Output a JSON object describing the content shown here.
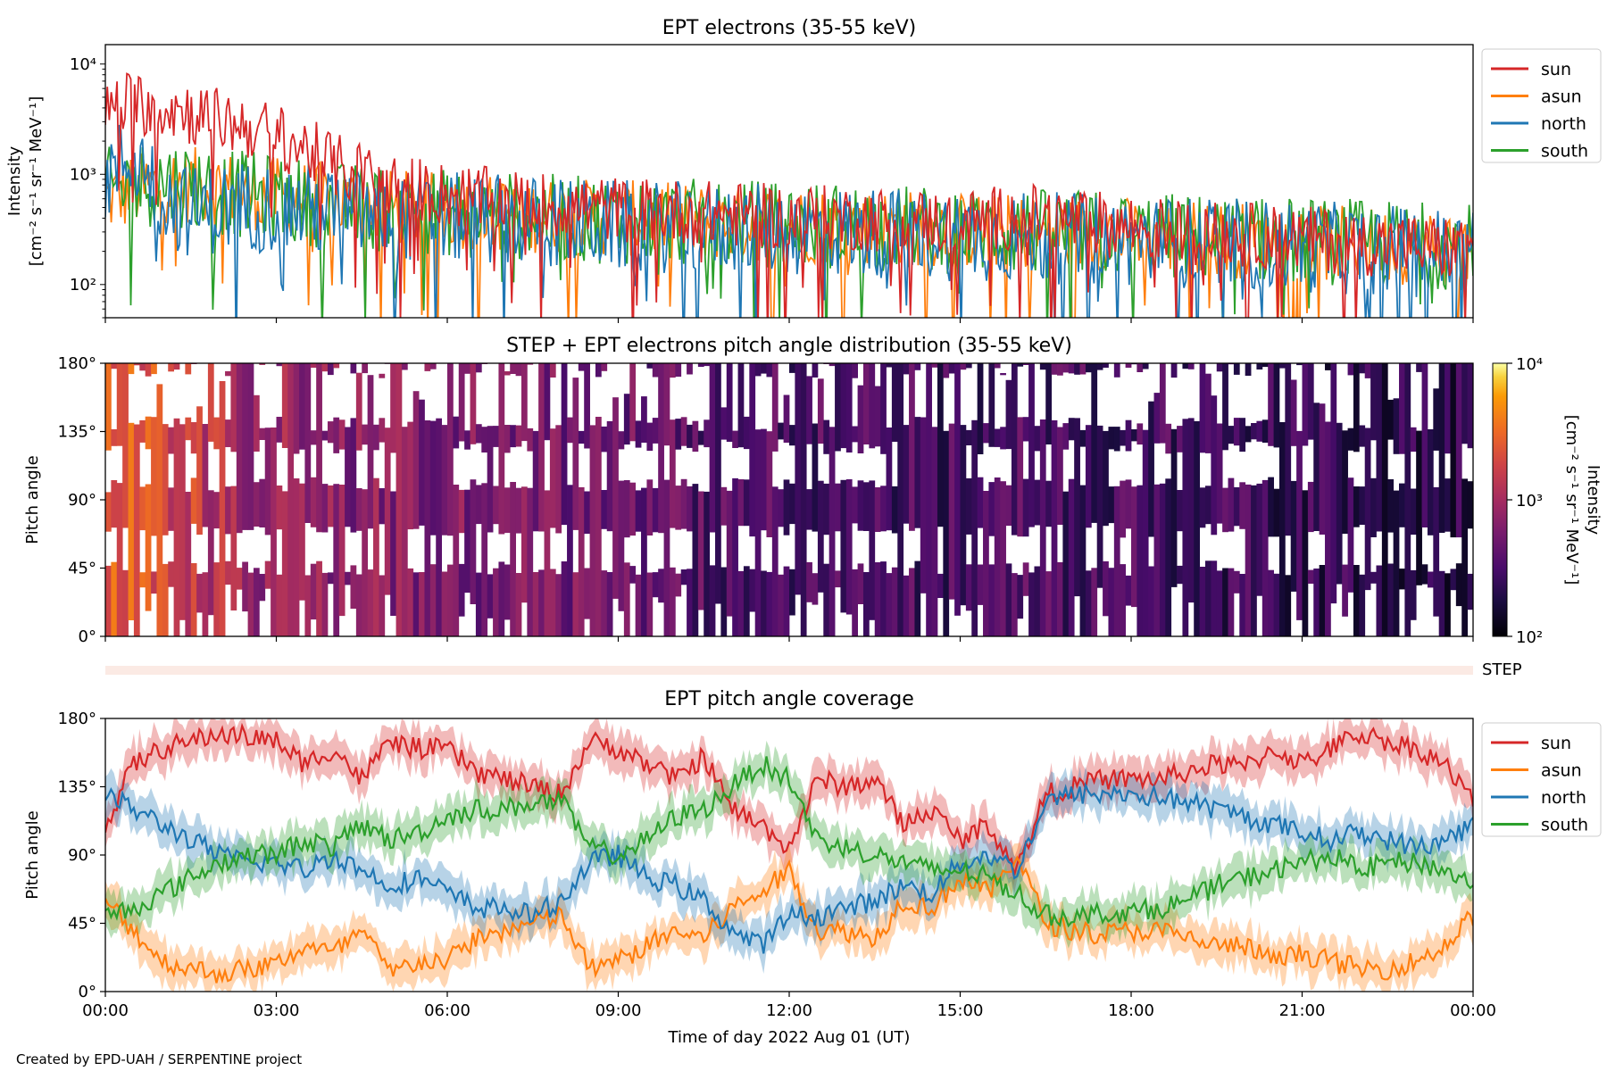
{
  "footer_credit": "Created by EPD-UAH / SERPENTINE project",
  "chart_data": [
    {
      "type": "line",
      "title": "EPT electrons (35-55 keV)",
      "ylabel_line1": "Intensity",
      "ylabel_line2": "[cm⁻² s⁻¹ sr⁻¹ MeV⁻¹]",
      "yscale": "log",
      "ylim": [
        50,
        15000
      ],
      "yticks": [
        {
          "value": 100,
          "label": "10²"
        },
        {
          "value": 1000,
          "label": "10³"
        },
        {
          "value": 10000,
          "label": "10⁴"
        }
      ],
      "xlim_hours": [
        0,
        24
      ],
      "legend_position": "outside right, top",
      "grid": false,
      "series": [
        {
          "name": "sun",
          "color": "#d62728",
          "x": [
            0,
            0.5,
            1,
            1.5,
            2,
            2.5,
            3,
            3.5,
            4,
            5,
            6,
            7,
            8,
            9,
            10,
            11,
            12,
            13,
            14,
            15,
            16,
            17,
            18,
            19,
            20,
            21,
            22,
            23,
            24
          ],
          "y": [
            4000,
            4500,
            4200,
            3600,
            3100,
            2700,
            2200,
            1700,
            1200,
            800,
            650,
            560,
            520,
            480,
            460,
            430,
            410,
            400,
            380,
            360,
            420,
            380,
            330,
            300,
            280,
            260,
            240,
            220,
            210
          ]
        },
        {
          "name": "asun",
          "color": "#ff7f0e",
          "x": [
            0,
            0.5,
            1,
            1.5,
            2,
            2.5,
            3,
            3.5,
            4,
            5,
            6,
            7,
            8,
            9,
            10,
            11,
            12,
            13,
            14,
            15,
            16,
            17,
            18,
            19,
            20,
            21,
            22,
            23,
            24
          ],
          "y": [
            600,
            700,
            800,
            800,
            750,
            700,
            650,
            600,
            560,
            500,
            470,
            440,
            420,
            400,
            380,
            360,
            350,
            340,
            330,
            310,
            300,
            290,
            280,
            270,
            250,
            240,
            230,
            220,
            210
          ]
        },
        {
          "name": "north",
          "color": "#1f77b4",
          "x": [
            0,
            0.5,
            1,
            1.5,
            2,
            2.5,
            3,
            3.5,
            4,
            5,
            6,
            7,
            8,
            9,
            10,
            11,
            12,
            13,
            14,
            15,
            16,
            17,
            18,
            19,
            20,
            21,
            22,
            23,
            24
          ],
          "y": [
            900,
            1500,
            600,
            450,
            500,
            520,
            500,
            480,
            450,
            420,
            400,
            380,
            360,
            340,
            330,
            320,
            310,
            300,
            290,
            280,
            270,
            260,
            250,
            240,
            230,
            220,
            210,
            200,
            190
          ]
        },
        {
          "name": "south",
          "color": "#2ca02c",
          "x": [
            0,
            0.5,
            1,
            1.5,
            2,
            2.5,
            3,
            3.5,
            4,
            5,
            6,
            7,
            8,
            9,
            10,
            11,
            12,
            13,
            14,
            15,
            16,
            17,
            18,
            19,
            20,
            21,
            22,
            23,
            24
          ],
          "y": [
            700,
            800,
            850,
            800,
            700,
            650,
            600,
            560,
            520,
            480,
            450,
            420,
            400,
            380,
            370,
            360,
            350,
            340,
            320,
            310,
            300,
            290,
            280,
            270,
            260,
            250,
            240,
            230,
            220
          ]
        }
      ]
    },
    {
      "type": "heatmap",
      "title": "STEP + EPT electrons pitch angle distribution (35-55 keV)",
      "ylabel": "Pitch angle",
      "ylim": [
        0,
        180
      ],
      "yticks": [
        "0°",
        "45°",
        "90°",
        "135°",
        "180°"
      ],
      "xlim_hours": [
        0,
        24
      ],
      "colormap": "inferno",
      "colorbar_label": "Intensity",
      "colorbar_unit": "[cm⁻² s⁻¹ sr⁻¹ MeV⁻¹]",
      "colorbar_scale": "log",
      "colorbar_range": [
        100,
        10000
      ],
      "colorbar_ticks": [
        "10²",
        "10³",
        "10⁴"
      ],
      "colorbar_tick_values": [
        100,
        1000,
        10000
      ],
      "intensity_hours": [
        0,
        1,
        2,
        3,
        4,
        5,
        6,
        7,
        8,
        9,
        10,
        11,
        12,
        13,
        14,
        15,
        16,
        17,
        18,
        19,
        20,
        21,
        22,
        23,
        24
      ],
      "intensity_values": [
        2500,
        2000,
        1200,
        800,
        700,
        650,
        600,
        560,
        520,
        480,
        400,
        330,
        320,
        310,
        300,
        290,
        330,
        310,
        300,
        280,
        260,
        240,
        230,
        220,
        210
      ],
      "gap_bands_deg": [
        [
          45,
          70
        ],
        [
          100,
          125
        ],
        [
          140,
          175
        ]
      ]
    },
    {
      "type": "area",
      "label": "STEP",
      "color": "#fbeae4",
      "xlim_hours": [
        0,
        24
      ]
    },
    {
      "type": "line",
      "title": "EPT pitch angle coverage",
      "ylabel": "Pitch angle",
      "xlabel": "Time of day 2022 Aug 01 (UT)",
      "ylim": [
        0,
        180
      ],
      "yticks": [
        "0°",
        "45°",
        "90°",
        "135°",
        "180°"
      ],
      "xlim_hours": [
        0,
        24
      ],
      "xticks": [
        "00:00",
        "03:00",
        "06:00",
        "09:00",
        "12:00",
        "15:00",
        "18:00",
        "21:00",
        "00:00"
      ],
      "legend_position": "outside right, top",
      "band_halfwidth_deg": 12,
      "series": [
        {
          "name": "sun",
          "color": "#d62728",
          "x": [
            0,
            0.5,
            1,
            1.5,
            2,
            2.5,
            3,
            3.5,
            4,
            4.5,
            5,
            5.5,
            6,
            6.5,
            7,
            7.5,
            8,
            8.5,
            9,
            9.5,
            10,
            10.5,
            11,
            11.5,
            12,
            12.5,
            13,
            13.5,
            14,
            14.5,
            15,
            15.5,
            16,
            16.5,
            17,
            17.5,
            18,
            18.5,
            19,
            19.5,
            20,
            20.5,
            21,
            21.5,
            22,
            22.5,
            23,
            23.5,
            24
          ],
          "y": [
            110,
            150,
            160,
            165,
            170,
            168,
            165,
            150,
            160,
            140,
            165,
            160,
            160,
            145,
            140,
            135,
            130,
            165,
            160,
            150,
            140,
            155,
            120,
            110,
            95,
            140,
            135,
            140,
            110,
            120,
            100,
            110,
            80,
            130,
            135,
            140,
            140,
            140,
            145,
            150,
            148,
            160,
            150,
            160,
            170,
            165,
            160,
            150,
            125
          ]
        },
        {
          "name": "asun",
          "color": "#ff7f0e",
          "x": [
            0,
            0.5,
            1,
            1.5,
            2,
            2.5,
            3,
            3.5,
            4,
            4.5,
            5,
            5.5,
            6,
            6.5,
            7,
            7.5,
            8,
            8.5,
            9,
            9.5,
            10,
            10.5,
            11,
            11.5,
            12,
            12.5,
            13,
            13.5,
            14,
            14.5,
            15,
            15.5,
            16,
            16.5,
            17,
            17.5,
            18,
            18.5,
            19,
            19.5,
            20,
            20.5,
            21,
            21.5,
            22,
            22.5,
            23,
            23.5,
            24
          ],
          "y": [
            60,
            40,
            20,
            15,
            12,
            15,
            18,
            30,
            25,
            40,
            12,
            20,
            20,
            35,
            40,
            45,
            50,
            15,
            20,
            30,
            40,
            35,
            55,
            65,
            80,
            40,
            40,
            35,
            60,
            55,
            75,
            65,
            90,
            45,
            40,
            38,
            40,
            40,
            35,
            30,
            30,
            20,
            25,
            20,
            15,
            15,
            20,
            30,
            50
          ]
        },
        {
          "name": "north",
          "color": "#1f77b4",
          "x": [
            0,
            0.5,
            1,
            1.5,
            2,
            2.5,
            3,
            3.5,
            4,
            4.5,
            5,
            5.5,
            6,
            6.5,
            7,
            7.5,
            8,
            8.5,
            9,
            9.5,
            10,
            10.5,
            11,
            11.5,
            12,
            12.5,
            13,
            13.5,
            14,
            14.5,
            15,
            15.5,
            16,
            16.5,
            17,
            17.5,
            18,
            18.5,
            19,
            19.5,
            20,
            20.5,
            21,
            21.5,
            22,
            22.5,
            23,
            23.5,
            24
          ],
          "y": [
            130,
            120,
            110,
            100,
            90,
            85,
            85,
            80,
            90,
            80,
            70,
            75,
            65,
            55,
            55,
            50,
            60,
            85,
            90,
            75,
            70,
            60,
            40,
            30,
            50,
            50,
            55,
            60,
            70,
            65,
            85,
            90,
            80,
            125,
            130,
            130,
            130,
            128,
            125,
            120,
            115,
            110,
            105,
            100,
            105,
            100,
            95,
            100,
            110
          ]
        },
        {
          "name": "south",
          "color": "#2ca02c",
          "x": [
            0,
            0.5,
            1,
            1.5,
            2,
            2.5,
            3,
            3.5,
            4,
            4.5,
            5,
            5.5,
            6,
            6.5,
            7,
            7.5,
            8,
            8.5,
            9,
            9.5,
            10,
            10.5,
            11,
            11.5,
            12,
            12.5,
            13,
            13.5,
            14,
            14.5,
            15,
            15.5,
            16,
            16.5,
            17,
            17.5,
            18,
            18.5,
            19,
            19.5,
            20,
            20.5,
            21,
            21.5,
            22,
            22.5,
            23,
            23.5,
            24
          ],
          "y": [
            50,
            55,
            65,
            75,
            85,
            90,
            90,
            100,
            95,
            110,
            100,
            105,
            115,
            120,
            120,
            125,
            125,
            95,
            90,
            100,
            115,
            120,
            135,
            150,
            140,
            100,
            95,
            90,
            85,
            80,
            80,
            75,
            65,
            50,
            50,
            52,
            52,
            55,
            60,
            70,
            75,
            80,
            85,
            90,
            80,
            85,
            85,
            80,
            70
          ]
        }
      ]
    }
  ]
}
